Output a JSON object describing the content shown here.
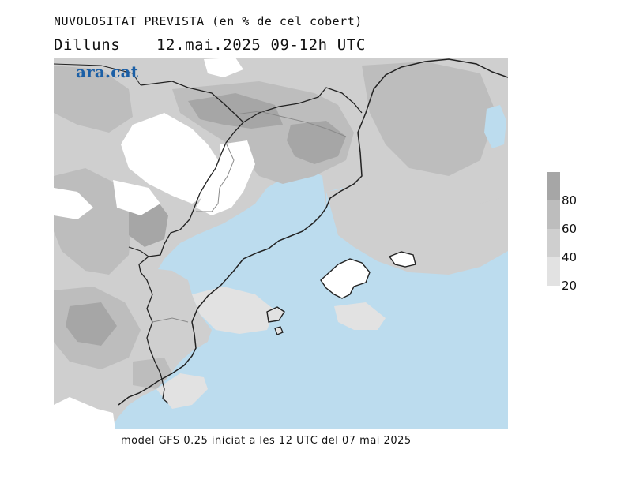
{
  "title": "NUVOLOSITAT PREVISTA (en % de cel cobert)",
  "day": "Dilluns",
  "datetime": "12.mai.2025 09-12h UTC",
  "logo": "ara.cat",
  "legend": {
    "levels": [
      "80",
      "60",
      "40",
      "20"
    ],
    "colors": [
      "#a6a6a6",
      "#bdbdbd",
      "#cfcfcf",
      "#e2e2e2"
    ]
  },
  "footer": "model GFS 0.25 iniciat a les 12 UTC del 07 mai 2025",
  "map_colors": {
    "sea": "#bcdcee",
    "clear": "#ffffff",
    "cloud_20": "#e2e2e2",
    "cloud_40": "#cfcfcf",
    "cloud_60": "#bdbdbd",
    "cloud_80": "#a6a6a6"
  }
}
